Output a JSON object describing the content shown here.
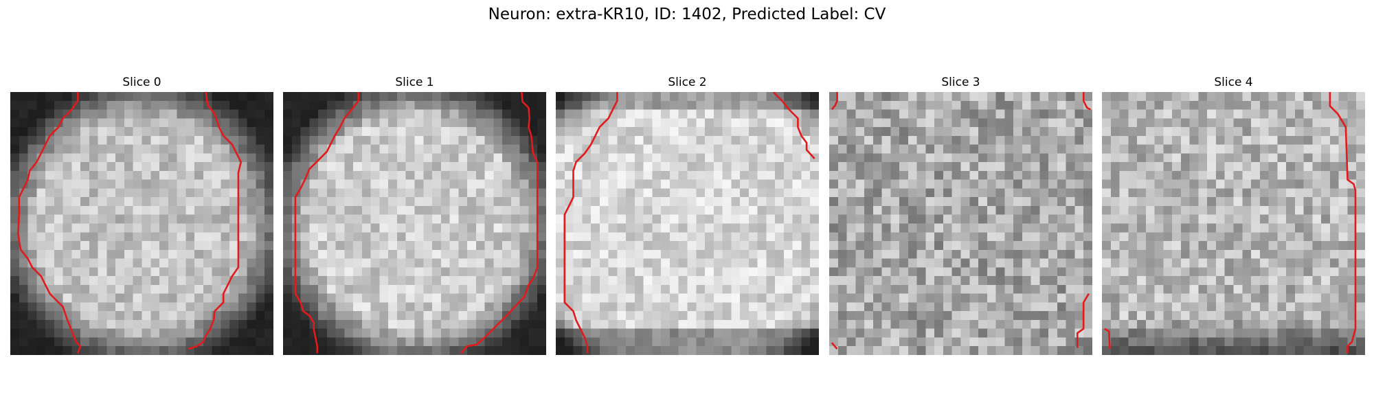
{
  "figure": {
    "title": "Neuron: extra-KR10, ID: 1402, Predicted Label: CV"
  },
  "slices": [
    {
      "title": "Slice 0",
      "seed": 11,
      "brightness": 0.76,
      "noise": 0.14,
      "dark_edges": "ring"
    },
    {
      "title": "Slice 1",
      "seed": 23,
      "brightness": 0.8,
      "noise": 0.14,
      "dark_edges": "ring"
    },
    {
      "title": "Slice 2",
      "seed": 37,
      "brightness": 0.84,
      "noise": 0.13,
      "dark_edges": "corners-top-bottom"
    },
    {
      "title": "Slice 3",
      "seed": 41,
      "brightness": 0.66,
      "noise": 0.2,
      "dark_edges": "slight"
    },
    {
      "title": "Slice 4",
      "seed": 53,
      "brightness": 0.72,
      "noise": 0.18,
      "dark_edges": "bottom"
    }
  ],
  "contour_color": "#e31a1c",
  "colormap": "gray"
}
